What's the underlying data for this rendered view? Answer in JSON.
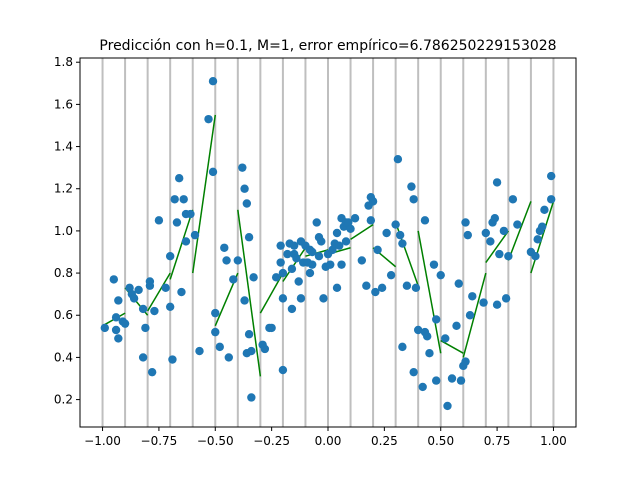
{
  "chart_data": {
    "type": "scatter",
    "title": "Predicción con h=0.1, M=1, error empírico=6.786250229153028",
    "xlabel": "",
    "ylabel": "",
    "xlim": [
      -1.1,
      1.1
    ],
    "ylim": [
      0.07,
      1.82
    ],
    "grid": false,
    "x_ticks": [
      -1.0,
      -0.75,
      -0.5,
      -0.25,
      0.0,
      0.25,
      0.5,
      0.75,
      1.0
    ],
    "x_tick_labels": [
      "−1.00",
      "−0.75",
      "−0.50",
      "−0.25",
      "0.00",
      "0.25",
      "0.50",
      "0.75",
      "1.00"
    ],
    "y_ticks": [
      0.2,
      0.4,
      0.6,
      0.8,
      1.0,
      1.2,
      1.4,
      1.6,
      1.8
    ],
    "y_tick_labels": [
      "0.2",
      "0.4",
      "0.6",
      "0.8",
      "1.0",
      "1.2",
      "1.4",
      "1.6",
      "1.8"
    ],
    "partition_lines": [
      -1.0,
      -0.9,
      -0.8,
      -0.7,
      -0.6,
      -0.5,
      -0.4,
      -0.3,
      -0.2,
      -0.1,
      0.0,
      0.1,
      0.2,
      0.3,
      0.4,
      0.5,
      0.6,
      0.7,
      0.8,
      0.9,
      1.0
    ],
    "colors": {
      "points": "#1f77b4",
      "fit": "#008000",
      "partitions": "#bfbfbf",
      "axes": "#000000"
    },
    "points": [
      [
        -0.99,
        0.54
      ],
      [
        -0.95,
        0.77
      ],
      [
        -0.94,
        0.59
      ],
      [
        -0.94,
        0.53
      ],
      [
        -0.93,
        0.67
      ],
      [
        -0.93,
        0.49
      ],
      [
        -0.91,
        0.57
      ],
      [
        -0.9,
        0.56
      ],
      [
        -0.88,
        0.73
      ],
      [
        -0.87,
        0.7
      ],
      [
        -0.86,
        0.68
      ],
      [
        -0.84,
        0.72
      ],
      [
        -0.82,
        0.4
      ],
      [
        -0.82,
        0.63
      ],
      [
        -0.81,
        0.54
      ],
      [
        -0.79,
        0.76
      ],
      [
        -0.79,
        0.74
      ],
      [
        -0.78,
        0.33
      ],
      [
        -0.77,
        0.62
      ],
      [
        -0.75,
        1.05
      ],
      [
        -0.72,
        0.73
      ],
      [
        -0.7,
        0.88
      ],
      [
        -0.7,
        0.64
      ],
      [
        -0.69,
        0.39
      ],
      [
        -0.68,
        1.15
      ],
      [
        -0.67,
        1.04
      ],
      [
        -0.66,
        1.25
      ],
      [
        -0.65,
        0.71
      ],
      [
        -0.64,
        1.15
      ],
      [
        -0.63,
        0.95
      ],
      [
        -0.63,
        1.08
      ],
      [
        -0.61,
        1.08
      ],
      [
        -0.59,
        0.98
      ],
      [
        -0.57,
        0.43
      ],
      [
        -0.53,
        1.53
      ],
      [
        -0.51,
        1.71
      ],
      [
        -0.51,
        1.28
      ],
      [
        -0.5,
        0.52
      ],
      [
        -0.5,
        0.61
      ],
      [
        -0.48,
        0.45
      ],
      [
        -0.46,
        0.92
      ],
      [
        -0.45,
        0.86
      ],
      [
        -0.44,
        0.4
      ],
      [
        -0.42,
        0.77
      ],
      [
        -0.4,
        0.86
      ],
      [
        -0.38,
        1.3
      ],
      [
        -0.37,
        0.67
      ],
      [
        -0.37,
        1.2
      ],
      [
        -0.36,
        1.13
      ],
      [
        -0.36,
        0.42
      ],
      [
        -0.35,
        0.51
      ],
      [
        -0.35,
        0.97
      ],
      [
        -0.34,
        0.21
      ],
      [
        -0.34,
        0.43
      ],
      [
        -0.33,
        0.78
      ],
      [
        -0.29,
        0.46
      ],
      [
        -0.28,
        0.44
      ],
      [
        -0.26,
        0.54
      ],
      [
        -0.25,
        0.54
      ],
      [
        -0.23,
        0.78
      ],
      [
        -0.21,
        0.93
      ],
      [
        -0.21,
        0.85
      ],
      [
        -0.2,
        0.8
      ],
      [
        -0.2,
        0.68
      ],
      [
        -0.2,
        0.34
      ],
      [
        -0.18,
        0.89
      ],
      [
        -0.17,
        0.94
      ],
      [
        -0.16,
        0.63
      ],
      [
        -0.16,
        0.82
      ],
      [
        -0.15,
        0.93
      ],
      [
        -0.15,
        0.89
      ],
      [
        -0.14,
        0.87
      ],
      [
        -0.13,
        0.76
      ],
      [
        -0.12,
        0.68
      ],
      [
        -0.12,
        0.95
      ],
      [
        -0.11,
        0.85
      ],
      [
        -0.1,
        0.93
      ],
      [
        -0.09,
        0.85
      ],
      [
        -0.08,
        0.8
      ],
      [
        -0.08,
        0.91
      ],
      [
        -0.07,
        0.84
      ],
      [
        -0.07,
        0.9
      ],
      [
        -0.05,
        1.04
      ],
      [
        -0.04,
        0.88
      ],
      [
        -0.04,
        0.97
      ],
      [
        -0.03,
        0.95
      ],
      [
        -0.02,
        0.68
      ],
      [
        -0.01,
        0.83
      ],
      [
        0.0,
        0.89
      ],
      [
        0.01,
        0.84
      ],
      [
        0.02,
        0.91
      ],
      [
        0.03,
        0.94
      ],
      [
        0.04,
        0.73
      ],
      [
        0.04,
        0.99
      ],
      [
        0.05,
        0.93
      ],
      [
        0.06,
        1.06
      ],
      [
        0.06,
        0.84
      ],
      [
        0.07,
        1.02
      ],
      [
        0.08,
        1.04
      ],
      [
        0.08,
        0.95
      ],
      [
        0.09,
        1.04
      ],
      [
        0.1,
        1.01
      ],
      [
        0.12,
        1.06
      ],
      [
        0.15,
        0.86
      ],
      [
        0.17,
        0.74
      ],
      [
        0.18,
        1.12
      ],
      [
        0.19,
        1.16
      ],
      [
        0.19,
        1.05
      ],
      [
        0.2,
        1.14
      ],
      [
        0.21,
        0.71
      ],
      [
        0.22,
        0.91
      ],
      [
        0.24,
        0.73
      ],
      [
        0.26,
        0.99
      ],
      [
        0.28,
        0.79
      ],
      [
        0.3,
        1.03
      ],
      [
        0.31,
        1.34
      ],
      [
        0.32,
        0.98
      ],
      [
        0.33,
        0.94
      ],
      [
        0.33,
        0.45
      ],
      [
        0.35,
        0.74
      ],
      [
        0.37,
        1.21
      ],
      [
        0.38,
        1.15
      ],
      [
        0.38,
        0.33
      ],
      [
        0.39,
        0.73
      ],
      [
        0.4,
        0.53
      ],
      [
        0.42,
        0.26
      ],
      [
        0.43,
        0.52
      ],
      [
        0.43,
        1.05
      ],
      [
        0.44,
        0.5
      ],
      [
        0.45,
        0.42
      ],
      [
        0.47,
        0.84
      ],
      [
        0.48,
        0.58
      ],
      [
        0.48,
        0.29
      ],
      [
        0.5,
        0.79
      ],
      [
        0.52,
        0.49
      ],
      [
        0.53,
        0.17
      ],
      [
        0.55,
        0.3
      ],
      [
        0.57,
        0.55
      ],
      [
        0.58,
        0.75
      ],
      [
        0.59,
        0.29
      ],
      [
        0.6,
        0.36
      ],
      [
        0.61,
        0.38
      ],
      [
        0.61,
        1.04
      ],
      [
        0.62,
        0.98
      ],
      [
        0.63,
        0.6
      ],
      [
        0.64,
        0.69
      ],
      [
        0.69,
        0.66
      ],
      [
        0.7,
        0.99
      ],
      [
        0.72,
        0.95
      ],
      [
        0.73,
        1.04
      ],
      [
        0.74,
        1.06
      ],
      [
        0.75,
        1.23
      ],
      [
        0.75,
        0.65
      ],
      [
        0.76,
        0.89
      ],
      [
        0.78,
        1.0
      ],
      [
        0.79,
        0.68
      ],
      [
        0.8,
        0.88
      ],
      [
        0.82,
        1.15
      ],
      [
        0.84,
        1.03
      ],
      [
        0.9,
        0.9
      ],
      [
        0.92,
        0.88
      ],
      [
        0.93,
        0.96
      ],
      [
        0.94,
        1.0
      ],
      [
        0.95,
        1.02
      ],
      [
        0.96,
        1.1
      ],
      [
        0.99,
        1.26
      ],
      [
        0.99,
        1.15
      ]
    ],
    "fit_segments": [
      [
        [
          -1.0,
          0.55
        ],
        [
          -0.9,
          0.61
        ]
      ],
      [
        [
          -0.9,
          0.73
        ],
        [
          -0.8,
          0.6
        ]
      ],
      [
        [
          -0.8,
          0.62
        ],
        [
          -0.7,
          0.8
        ]
      ],
      [
        [
          -0.7,
          0.77
        ],
        [
          -0.6,
          1.1
        ]
      ],
      [
        [
          -0.6,
          0.8
        ],
        [
          -0.5,
          1.55
        ]
      ],
      [
        [
          -0.5,
          0.55
        ],
        [
          -0.4,
          0.8
        ]
      ],
      [
        [
          -0.4,
          1.1
        ],
        [
          -0.3,
          0.31
        ]
      ],
      [
        [
          -0.3,
          0.61
        ],
        [
          -0.2,
          0.8
        ]
      ],
      [
        [
          -0.2,
          0.76
        ],
        [
          -0.1,
          0.92
        ]
      ],
      [
        [
          -0.1,
          0.88
        ],
        [
          0.0,
          0.91
        ]
      ],
      [
        [
          0.0,
          0.89
        ],
        [
          0.1,
          0.92
        ]
      ],
      [
        [
          0.1,
          0.96
        ],
        [
          0.2,
          1.03
        ]
      ],
      [
        [
          0.2,
          0.92
        ],
        [
          0.3,
          0.83
        ]
      ],
      [
        [
          0.3,
          1.04
        ],
        [
          0.4,
          0.74
        ]
      ],
      [
        [
          0.4,
          1.0
        ],
        [
          0.5,
          0.42
        ]
      ],
      [
        [
          0.5,
          0.48
        ],
        [
          0.6,
          0.42
        ]
      ],
      [
        [
          0.6,
          0.4
        ],
        [
          0.7,
          0.8
        ]
      ],
      [
        [
          0.7,
          0.85
        ],
        [
          0.8,
          1.0
        ]
      ],
      [
        [
          0.8,
          0.86
        ],
        [
          0.9,
          1.14
        ]
      ],
      [
        [
          0.9,
          0.8
        ],
        [
          1.0,
          1.14
        ]
      ]
    ]
  }
}
